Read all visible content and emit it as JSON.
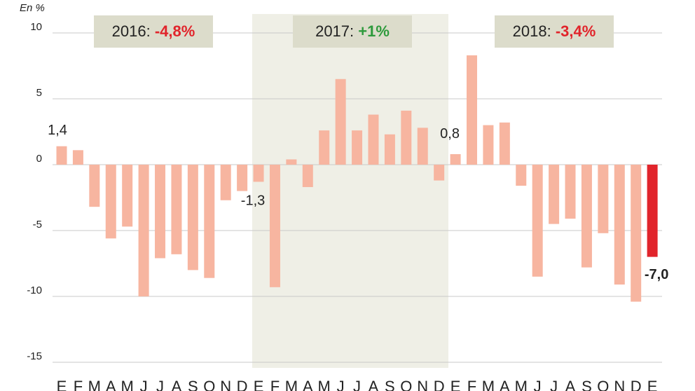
{
  "chart_data": {
    "type": "bar",
    "y_label": "En %",
    "categories": [
      "E",
      "F",
      "M",
      "A",
      "M",
      "J",
      "J",
      "A",
      "S",
      "O",
      "N",
      "D",
      "E",
      "F",
      "M",
      "A",
      "M",
      "J",
      "J",
      "A",
      "S",
      "O",
      "N",
      "D",
      "E",
      "F",
      "M",
      "A",
      "M",
      "J",
      "J",
      "A",
      "S",
      "O",
      "N",
      "D",
      "E"
    ],
    "values": [
      1.4,
      1.1,
      -3.2,
      -5.6,
      -4.7,
      -10.0,
      -7.1,
      -6.8,
      -8.0,
      -8.6,
      -2.7,
      -2.0,
      -1.3,
      -9.3,
      0.4,
      -1.7,
      2.6,
      6.5,
      2.6,
      3.8,
      2.3,
      4.1,
      2.8,
      -1.2,
      0.8,
      8.3,
      3.0,
      3.2,
      -1.6,
      -8.5,
      -4.5,
      -4.1,
      -7.8,
      -5.2,
      -9.1,
      -10.4,
      -7.0
    ],
    "value_labels": [
      "1,4",
      null,
      null,
      null,
      null,
      null,
      null,
      null,
      null,
      null,
      null,
      null,
      "-1,3",
      null,
      null,
      null,
      null,
      null,
      null,
      null,
      null,
      null,
      null,
      null,
      "0,8",
      null,
      null,
      null,
      null,
      null,
      null,
      null,
      null,
      null,
      null,
      null,
      "-7,0"
    ],
    "color": "#f7b5a0",
    "highlight": {
      "index": 36,
      "color": "#e1242b"
    },
    "ylim": [
      -15,
      10
    ],
    "yticks": [
      10,
      5,
      0,
      -5,
      -10,
      -15
    ],
    "grid": true,
    "annotations": [
      {
        "year": "2016:",
        "change": "-4,8%",
        "color": "#e1242b"
      },
      {
        "year": "2017:",
        "change": "+1%",
        "color": "#2e9a3c"
      },
      {
        "year": "2018:",
        "change": "-3,4%",
        "color": "#e1242b"
      }
    ]
  }
}
